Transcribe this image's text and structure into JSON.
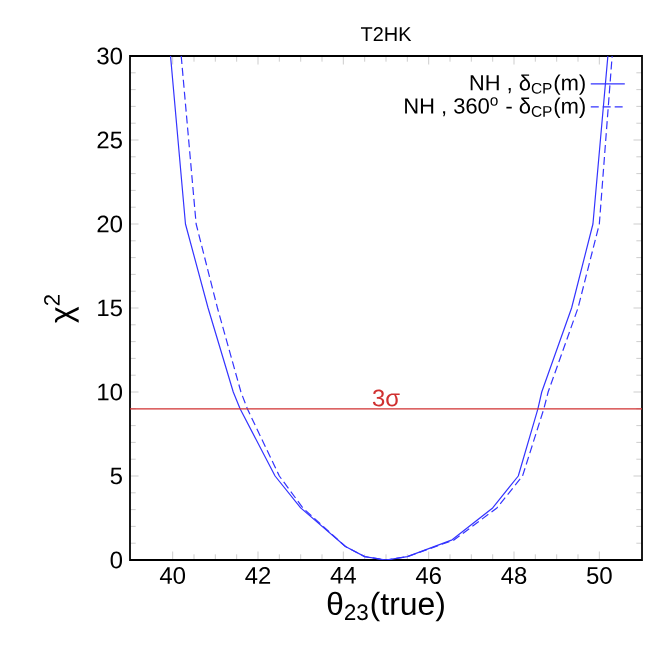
{
  "chart_data": {
    "type": "line",
    "title": "T2HK",
    "xlabel": "θ$_{23}$(true)",
    "ylabel": "χ$^{2}$",
    "xlim": [
      39,
      51
    ],
    "xticks": [
      40,
      42,
      44,
      46,
      48,
      50
    ],
    "ylim": [
      0,
      30
    ],
    "yticks": [
      0,
      5,
      10,
      15,
      20,
      25,
      30
    ],
    "grid": false,
    "legend": "top right",
    "marker": "none",
    "ref_lines": [
      {
        "axis": "y",
        "value": 9,
        "label": "3σ",
        "color": "#d03030"
      }
    ],
    "series": [
      {
        "name": "NH , δ$_{CP}$(m)",
        "color": "#3333ff",
        "line_style": "solid",
        "x": [
          39.95,
          40.3,
          40.83,
          41.42,
          41.58,
          42.4,
          43.0,
          44.05,
          44.5,
          45.0,
          45.5,
          46.55,
          47.5,
          48.1,
          48.56,
          48.65,
          49.35,
          49.85,
          50.2
        ],
        "values": [
          30,
          20,
          15,
          10,
          9,
          5,
          3.1,
          0.8,
          0.2,
          0,
          0.2,
          1.2,
          3.1,
          5,
          9,
          10,
          15,
          20,
          30
        ]
      },
      {
        "name": "NH , 360$^{o}$ - δ$_{CP}$(m)",
        "color": "#3333ff",
        "line_style": "dashed",
        "x": [
          40.2,
          40.55,
          41.05,
          41.6,
          41.75,
          42.5,
          43.05,
          44.05,
          44.5,
          45.0,
          45.5,
          46.6,
          47.6,
          48.2,
          48.7,
          48.8,
          49.5,
          50.0,
          50.3
        ],
        "values": [
          30,
          20,
          15,
          10,
          9,
          5,
          3.1,
          0.8,
          0.2,
          0,
          0.2,
          1.2,
          3.1,
          5,
          9,
          10,
          15,
          20,
          30
        ]
      }
    ]
  }
}
